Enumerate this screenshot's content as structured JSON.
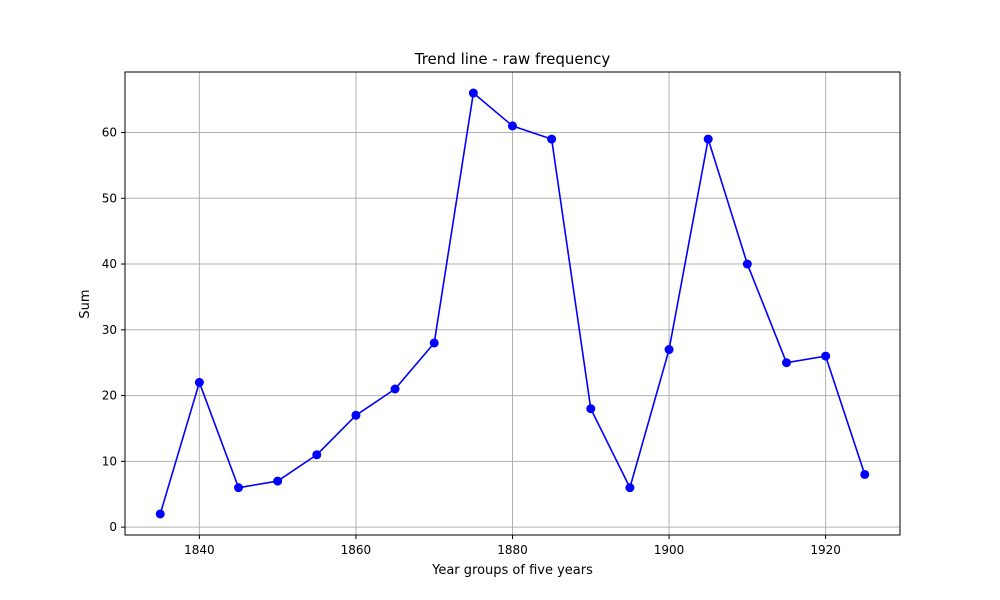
{
  "chart_data": {
    "type": "line",
    "title": "Trend line - raw frequency",
    "xlabel": "Year groups of five years",
    "ylabel": "Sum",
    "x": [
      1835,
      1840,
      1845,
      1850,
      1855,
      1860,
      1865,
      1870,
      1875,
      1880,
      1885,
      1890,
      1895,
      1900,
      1905,
      1910,
      1915,
      1920,
      1925
    ],
    "series": [
      {
        "values": [
          2,
          22,
          6,
          7,
          11,
          17,
          21,
          28,
          66,
          61,
          59,
          18,
          6,
          27,
          59,
          40,
          25,
          26,
          8
        ],
        "color": "#0000ff",
        "marker": "circle"
      }
    ],
    "xlim": [
      1830.5,
      1929.5
    ],
    "ylim": [
      -1.2,
      69.2
    ],
    "xticks": [
      "1840",
      "1860",
      "1880",
      "1900",
      "1920"
    ],
    "yticks": [
      "0",
      "10",
      "20",
      "30",
      "40",
      "50",
      "60"
    ],
    "grid": true
  }
}
